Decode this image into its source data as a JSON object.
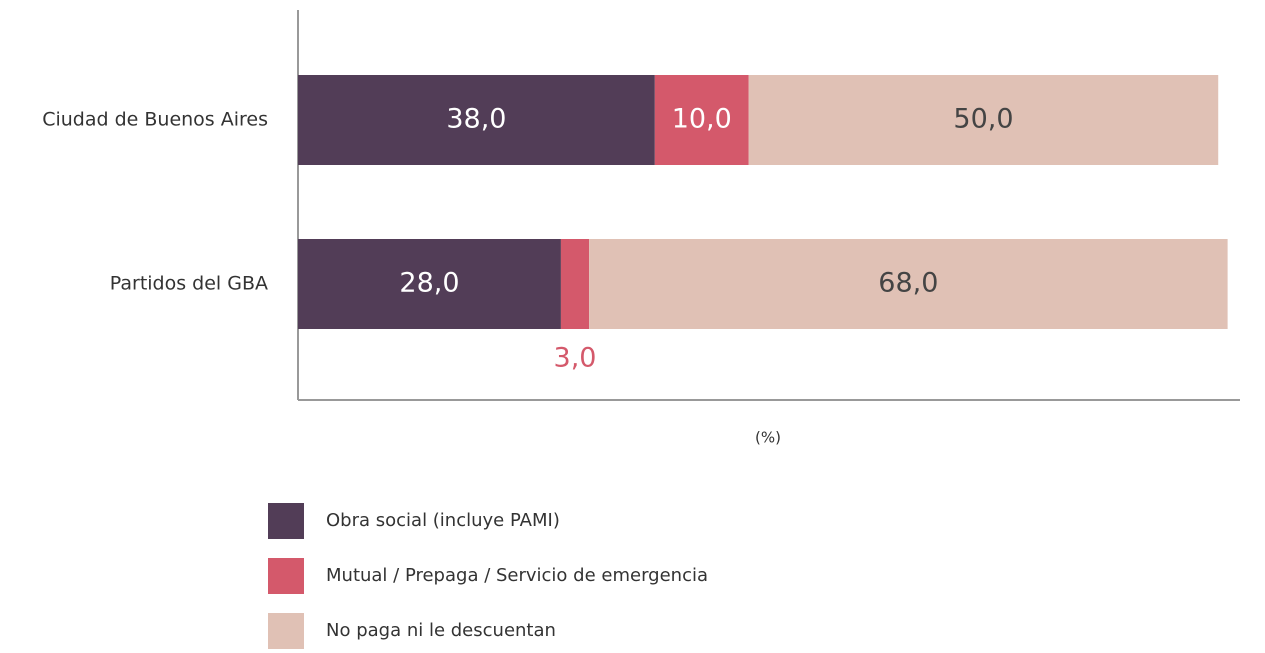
{
  "chart_data": {
    "type": "stacked_bar_horizontal",
    "categories": [
      "Ciudad de Buenos Aires",
      "Partidos del GBA"
    ],
    "series": [
      {
        "name": "Obra social (incluye PAMI)",
        "color": "#523d57",
        "values": [
          38,
          28
        ],
        "value_labels": [
          "38,0",
          "28,0"
        ]
      },
      {
        "name": "Mutual / Prepaga / Servicio de emergencia",
        "color": "#d4596b",
        "values": [
          10,
          3
        ],
        "value_labels": [
          "10,0",
          "3,0"
        ]
      },
      {
        "name": "No paga ni le descuentan",
        "color": "#e0c1b5",
        "values": [
          50,
          68
        ],
        "value_labels": [
          "50,0",
          "68,0"
        ]
      }
    ],
    "xlabel": "(%)",
    "xlim": [
      0,
      100
    ]
  }
}
